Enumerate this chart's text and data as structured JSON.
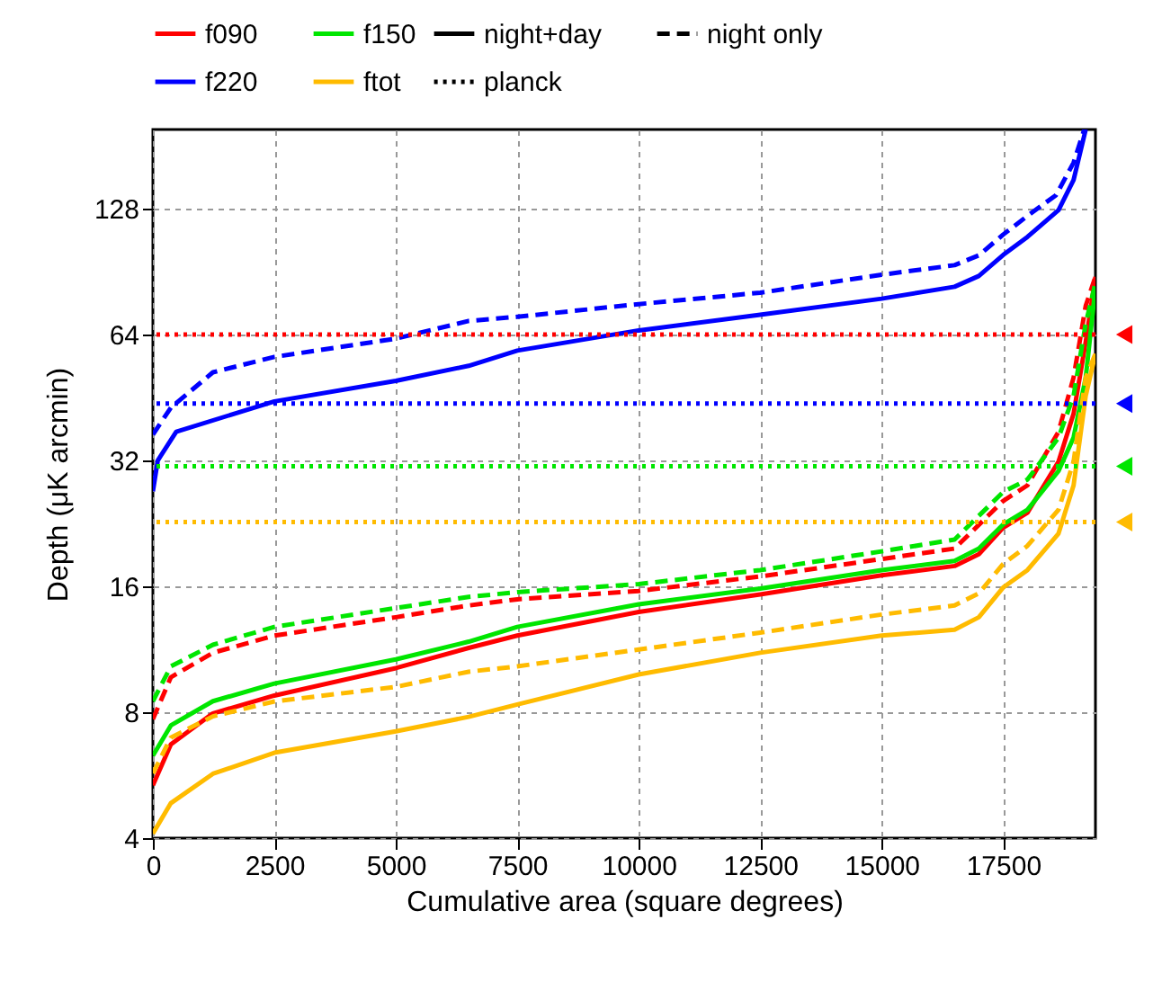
{
  "chart_data": {
    "type": "line",
    "xlabel": "Cumulative area (square degrees)",
    "ylabel": "Depth (μK arcmin)",
    "xlim": [
      0,
      19400
    ],
    "xticks": [
      0,
      2500,
      5000,
      7500,
      10000,
      12500,
      15000,
      17500
    ],
    "ylim": [
      4,
      198
    ],
    "yticks": [
      4,
      8,
      16,
      32,
      64,
      128
    ],
    "log": "y",
    "grid": true,
    "legend": "top",
    "annotations": [
      "night+day",
      "night only",
      "planck"
    ],
    "series": [
      {
        "name": "f090",
        "color": "#ff0000",
        "line_style": "solid",
        "x": [
          0,
          370,
          1235,
          2500,
          5000,
          6500,
          7500,
          10000,
          12500,
          15000,
          16500,
          17000,
          17500,
          18000,
          18640,
          18950,
          19200,
          19400
        ],
        "values": [
          5.35,
          6.7,
          7.95,
          8.77,
          10.2,
          11.4,
          12.2,
          13.9,
          15.3,
          17,
          17.9,
          19.1,
          22.1,
          24,
          31.8,
          41.4,
          61.5,
          88
        ]
      },
      {
        "name": "f150",
        "color": "#00e600",
        "line_style": "solid",
        "x": [
          0,
          370,
          1235,
          2500,
          5000,
          6500,
          7500,
          10000,
          12500,
          15000,
          16500,
          17000,
          17500,
          18000,
          18640,
          18950,
          19200,
          19400
        ],
        "values": [
          6.3,
          7.44,
          8.5,
          9.37,
          10.7,
          11.8,
          12.8,
          14.5,
          15.8,
          17.5,
          18.4,
          19.7,
          22.5,
          24.4,
          30.2,
          36.3,
          50.5,
          83
        ]
      },
      {
        "name": "f220",
        "color": "#0000ff",
        "line_style": "solid",
        "x": [
          0,
          100,
          480,
          2500,
          5000,
          6500,
          7500,
          10000,
          12500,
          15000,
          16500,
          17000,
          17500,
          18000,
          18640,
          18950,
          19200
        ],
        "values": [
          27,
          32,
          37.5,
          44.3,
          49.6,
          53.9,
          58.6,
          65.5,
          71.4,
          78,
          83.3,
          88.4,
          99.2,
          109.6,
          127,
          150,
          198
        ]
      },
      {
        "name": "ftot",
        "color": "#ffbb00",
        "line_style": "solid",
        "x": [
          0,
          370,
          1235,
          2500,
          5000,
          6500,
          7500,
          10000,
          12500,
          15000,
          16500,
          17000,
          17500,
          18000,
          18640,
          18950,
          19200,
          19400
        ],
        "values": [
          4.1,
          4.85,
          5.7,
          6.4,
          7.2,
          7.8,
          8.35,
          9.85,
          11.1,
          12.2,
          12.6,
          13.5,
          15.9,
          17.5,
          21.4,
          27.9,
          45.7,
          57.6
        ]
      },
      {
        "color": "#ff0000",
        "line_style": "dashed",
        "x": [
          0,
          370,
          1235,
          2500,
          5000,
          6500,
          7500,
          10000,
          12500,
          15000,
          16500,
          17500,
          18000,
          18640,
          18950,
          19200,
          19400
        ],
        "values": [
          7.7,
          9.7,
          11.1,
          12.2,
          13.5,
          14.4,
          14.9,
          15.6,
          16.9,
          18.6,
          19.7,
          25.6,
          27.9,
          37.5,
          50.5,
          75,
          88
        ]
      },
      {
        "color": "#00e600",
        "line_style": "dashed",
        "x": [
          0,
          370,
          1235,
          2500,
          5000,
          6500,
          7500,
          10000,
          12500,
          15000,
          16500,
          17500,
          18000,
          18640,
          18950,
          19200,
          19400
        ],
        "values": [
          8.5,
          10.3,
          11.6,
          12.8,
          14.2,
          15.1,
          15.5,
          16.2,
          17.5,
          19.4,
          20.7,
          26.9,
          28.8,
          36.3,
          45.7,
          68,
          85
        ]
      },
      {
        "color": "#0000ff",
        "line_style": "dashed",
        "x": [
          0,
          370,
          1235,
          2500,
          5000,
          6500,
          7500,
          10000,
          12500,
          15000,
          16500,
          17000,
          17500,
          18000,
          18590,
          18950,
          19170
        ],
        "values": [
          36.9,
          42.8,
          52,
          56.6,
          62.6,
          69,
          70.6,
          75.7,
          80.6,
          89,
          93.8,
          99,
          111,
          123,
          138,
          165,
          198
        ]
      },
      {
        "color": "#ffbb00",
        "line_style": "dashed",
        "x": [
          0,
          370,
          1235,
          2500,
          5000,
          6500,
          7500,
          10000,
          12500,
          15000,
          16500,
          17000,
          17500,
          18000,
          18640,
          18950,
          19200,
          19400
        ],
        "values": [
          5.71,
          6.96,
          7.82,
          8.49,
          9.2,
          10,
          10.3,
          11.3,
          12.4,
          13.7,
          14.4,
          15.4,
          18.1,
          20,
          24.4,
          31.8,
          50.5,
          57.6
        ]
      }
    ],
    "ref_lines": [
      {
        "axis": "y",
        "value": 64,
        "color": "#ff0000",
        "line_style": "dotted"
      },
      {
        "axis": "y",
        "value": 43.8,
        "color": "#0000ff",
        "line_style": "dotted"
      },
      {
        "axis": "y",
        "value": 31,
        "color": "#00e600",
        "line_style": "dotted"
      },
      {
        "axis": "y",
        "value": 22.8,
        "color": "#ffbb00",
        "line_style": "dotted"
      }
    ]
  }
}
